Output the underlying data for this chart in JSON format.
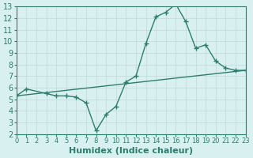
{
  "xlabel": "Humidex (Indice chaleur)",
  "xlim": [
    0,
    23
  ],
  "ylim": [
    2,
    13
  ],
  "yticks": [
    2,
    3,
    4,
    5,
    6,
    7,
    8,
    9,
    10,
    11,
    12,
    13
  ],
  "xticks": [
    0,
    1,
    2,
    3,
    4,
    5,
    6,
    7,
    8,
    9,
    10,
    11,
    12,
    13,
    14,
    15,
    16,
    17,
    18,
    19,
    20,
    21,
    22,
    23
  ],
  "line1_x": [
    0,
    1,
    3,
    4,
    5,
    6,
    7,
    8,
    9,
    10,
    11,
    12,
    13,
    14,
    15,
    16,
    17,
    18,
    19,
    20,
    21,
    22,
    23
  ],
  "line1_y": [
    5.3,
    5.9,
    5.5,
    5.3,
    5.3,
    5.2,
    4.7,
    2.3,
    3.7,
    4.4,
    6.5,
    7.0,
    9.8,
    12.1,
    12.5,
    13.2,
    11.7,
    9.4,
    9.7,
    8.3,
    7.7,
    7.5,
    7.5
  ],
  "line2_x": [
    0,
    23
  ],
  "line2_y": [
    5.3,
    7.5
  ],
  "line_color": "#2e7d6e",
  "bg_color": "#d8f0f0",
  "grid_color": "#c0d8d8",
  "tick_fontsize_x": 6,
  "tick_fontsize_y": 7,
  "label_fontsize": 8
}
